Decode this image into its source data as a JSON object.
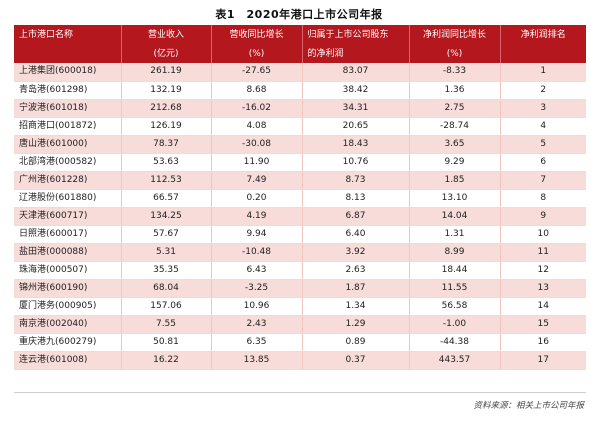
{
  "title": "表1　2020年港口上市公司年报",
  "headers": {
    "row1": [
      "上市港口名称",
      "营业收入",
      "营收同比增长",
      "归属于上市公司股东",
      "净利润同比增长",
      "净利润排名"
    ],
    "row2": [
      "",
      "(亿元)",
      "(%)",
      "的净利润",
      "(%)",
      ""
    ]
  },
  "rows": [
    [
      "上港集团(600018)",
      "261.19",
      "-27.65",
      "83.07",
      "-8.33",
      "1"
    ],
    [
      "青岛港(601298)",
      "132.19",
      "8.68",
      "38.42",
      "1.36",
      "2"
    ],
    [
      "宁波港(601018)",
      "212.68",
      "-16.02",
      "34.31",
      "2.75",
      "3"
    ],
    [
      "招商港口(001872)",
      "126.19",
      "4.08",
      "20.65",
      "-28.74",
      "4"
    ],
    [
      "唐山港(601000)",
      "78.37",
      "-30.08",
      "18.43",
      "3.65",
      "5"
    ],
    [
      "北部湾港(000582)",
      "53.63",
      "11.90",
      "10.76",
      "9.29",
      "6"
    ],
    [
      "广州港(601228)",
      "112.53",
      "7.49",
      "8.73",
      "1.85",
      "7"
    ],
    [
      "辽港股份(601880)",
      "66.57",
      "0.20",
      "8.13",
      "13.10",
      "8"
    ],
    [
      "天津港(600717)",
      "134.25",
      "4.19",
      "6.87",
      "14.04",
      "9"
    ],
    [
      "日照港(600017)",
      "57.67",
      "9.94",
      "6.40",
      "1.31",
      "10"
    ],
    [
      "盐田港(000088)",
      "5.31",
      "-10.48",
      "3.92",
      "8.99",
      "11"
    ],
    [
      "珠海港(000507)",
      "35.35",
      "6.43",
      "2.63",
      "18.44",
      "12"
    ],
    [
      "锦州港(600190)",
      "68.04",
      "-3.25",
      "1.87",
      "11.55",
      "13"
    ],
    [
      "厦门港务(000905)",
      "157.06",
      "10.96",
      "1.34",
      "56.58",
      "14"
    ],
    [
      "南京港(002040)",
      "7.55",
      "2.43",
      "1.29",
      "-1.00",
      "15"
    ],
    [
      "重庆港九(600279)",
      "50.81",
      "6.35",
      "0.89",
      "-44.38",
      "16"
    ],
    [
      "连云港(601008)",
      "16.22",
      "13.85",
      "0.37",
      "443.57",
      "17"
    ]
  ],
  "source": "资料来源：相关上市公司年报",
  "colors": {
    "header_bg": "#b4171d",
    "row_pink": "#f7dcd9",
    "row_white": "#ffffff"
  }
}
